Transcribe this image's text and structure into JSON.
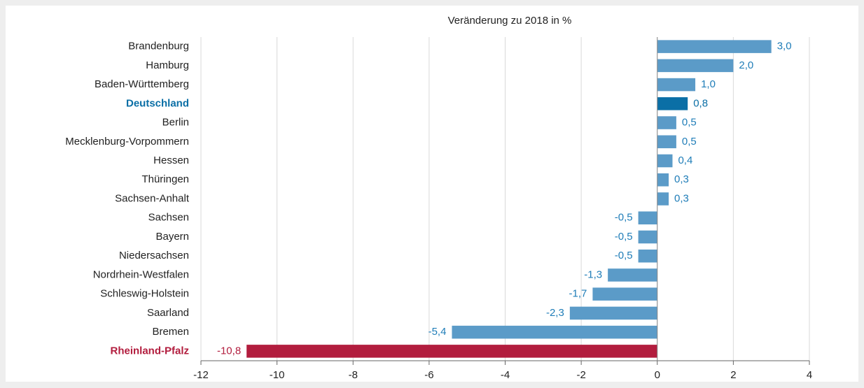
{
  "chart_data": {
    "type": "barh",
    "title": "Veränderung zu 2018 in %",
    "categories": [
      "Brandenburg",
      "Hamburg",
      "Baden-Württemberg",
      "Deutschland",
      "Berlin",
      "Mecklenburg-Vorpommern",
      "Hessen",
      "Thüringen",
      "Sachsen-Anhalt",
      "Sachsen",
      "Bayern",
      "Niedersachsen",
      "Nordrhein-Westfalen",
      "Schleswig-Holstein",
      "Saarland",
      "Bremen",
      "Rheinland-Pfalz"
    ],
    "values": [
      3.0,
      2.0,
      1.0,
      0.8,
      0.5,
      0.5,
      0.4,
      0.3,
      0.3,
      -0.5,
      -0.5,
      -0.5,
      -1.3,
      -1.7,
      -2.3,
      -5.4,
      -10.8
    ],
    "value_labels": [
      "3,0",
      "2,0",
      "1,0",
      "0,8",
      "0,5",
      "0,5",
      "0,4",
      "0,3",
      "0,3",
      "-0,5",
      "-0,5",
      "-0,5",
      "-1,3",
      "-1,7",
      "-2,3",
      "-5,4",
      "-10,8"
    ],
    "color": "#5b9bc8",
    "colors": [
      "#5b9bc8",
      "#5b9bc8",
      "#5b9bc8",
      "#0b6fa6",
      "#5b9bc8",
      "#5b9bc8",
      "#5b9bc8",
      "#5b9bc8",
      "#5b9bc8",
      "#5b9bc8",
      "#5b9bc8",
      "#5b9bc8",
      "#5b9bc8",
      "#5b9bc8",
      "#5b9bc8",
      "#5b9bc8",
      "#b21d3e"
    ],
    "xlim": [
      -12,
      4
    ],
    "xticks": [
      -12,
      -10,
      -8,
      -6,
      -4,
      -2,
      0,
      2,
      4
    ],
    "grid": true
  }
}
